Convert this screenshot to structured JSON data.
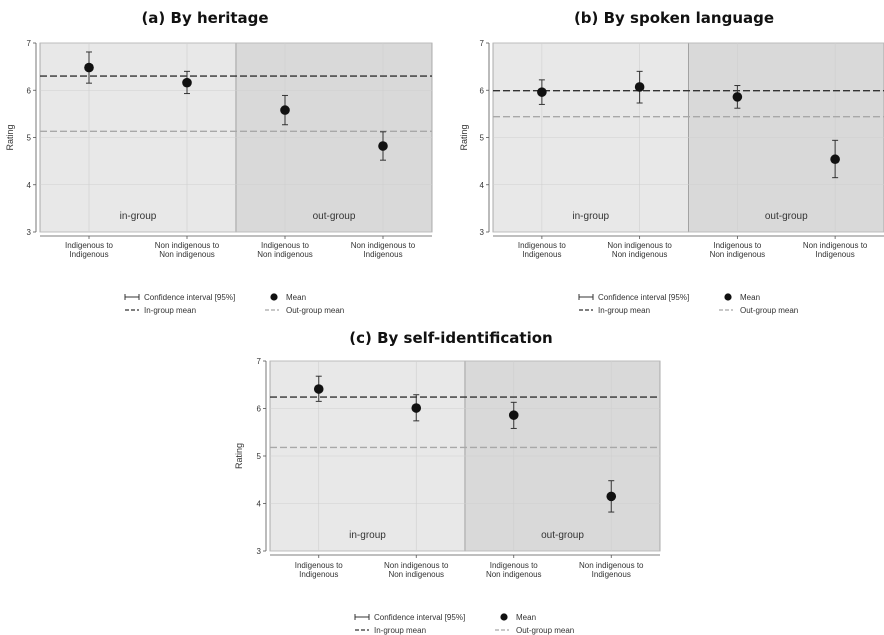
{
  "chart_data": [
    {
      "type": "scatter",
      "title": "(a) By heritage",
      "ylabel": "Rating",
      "ylim": [
        3,
        7
      ],
      "yticks": [
        3,
        4,
        5,
        6,
        7
      ],
      "grid": true,
      "categories": [
        "Indigenous to\nIndigenous",
        "Non indigenous to\nNon indigenous",
        "Indigenous to\nNon indigenous",
        "Non indigenous to\nIndigenous"
      ],
      "series": [
        {
          "name": "Mean",
          "values": [
            6.48,
            6.16,
            5.58,
            4.82
          ]
        },
        {
          "name": "Confidence interval [95%]",
          "lower": [
            6.15,
            5.93,
            5.27,
            4.52
          ],
          "upper": [
            6.81,
            6.4,
            5.89,
            5.12
          ]
        }
      ],
      "in_group_mean": 6.3,
      "out_group_mean": 5.13,
      "regions": [
        {
          "label": "in-group",
          "from": 0,
          "to": 1
        },
        {
          "label": "out-group",
          "from": 2,
          "to": 3
        }
      ],
      "legend": [
        "Confidence interval [95%]",
        "Mean",
        "In-group mean",
        "Out-group mean"
      ],
      "legend_position": "bottom"
    },
    {
      "type": "scatter",
      "title": "(b) By spoken language",
      "ylabel": "Rating",
      "ylim": [
        3,
        7
      ],
      "yticks": [
        3,
        4,
        5,
        6,
        7
      ],
      "grid": true,
      "categories": [
        "Indigenous to\nIndigenous",
        "Non indigenous to\nNon indigenous",
        "Indigenous to\nNon indigenous",
        "Non indigenous to\nIndigenous"
      ],
      "series": [
        {
          "name": "Mean",
          "values": [
            5.96,
            6.07,
            5.86,
            4.54
          ]
        },
        {
          "name": "Confidence interval [95%]",
          "lower": [
            5.7,
            5.73,
            5.62,
            4.15
          ],
          "upper": [
            6.22,
            6.4,
            6.1,
            4.94
          ]
        }
      ],
      "in_group_mean": 5.99,
      "out_group_mean": 5.44,
      "regions": [
        {
          "label": "in-group",
          "from": 0,
          "to": 1
        },
        {
          "label": "out-group",
          "from": 2,
          "to": 3
        }
      ],
      "legend": [
        "Confidence interval [95%]",
        "Mean",
        "In-group mean",
        "Out-group mean"
      ],
      "legend_position": "bottom"
    },
    {
      "type": "scatter",
      "title": "(c) By self-identification",
      "ylabel": "Rating",
      "ylim": [
        3,
        7
      ],
      "yticks": [
        3,
        4,
        5,
        6,
        7
      ],
      "grid": true,
      "categories": [
        "Indigenous to\nIndigenous",
        "Non indigenous to\nNon indigenous",
        "Indigenous to\nNon indigenous",
        "Non indigenous to\nIndigenous"
      ],
      "series": [
        {
          "name": "Mean",
          "values": [
            6.41,
            6.01,
            5.86,
            4.15
          ]
        },
        {
          "name": "Confidence interval [95%]",
          "lower": [
            6.15,
            5.74,
            5.58,
            3.82
          ],
          "upper": [
            6.68,
            6.29,
            6.13,
            4.48
          ]
        }
      ],
      "in_group_mean": 6.24,
      "out_group_mean": 5.18,
      "regions": [
        {
          "label": "in-group",
          "from": 0,
          "to": 1
        },
        {
          "label": "out-group",
          "from": 2,
          "to": 3
        }
      ],
      "legend": [
        "Confidence interval [95%]",
        "Mean",
        "In-group mean",
        "Out-group mean"
      ],
      "legend_position": "bottom"
    }
  ],
  "colors": {
    "in_group_region": "#e8e8e8",
    "out_group_region": "#d9d9d9",
    "region_border": "#9a9a9a",
    "in_group_mean_line": "#333333",
    "out_group_mean_line": "#a8a8a8",
    "marker": "#111111",
    "error_bar": "#333333",
    "grid": "#cfcfcf"
  }
}
